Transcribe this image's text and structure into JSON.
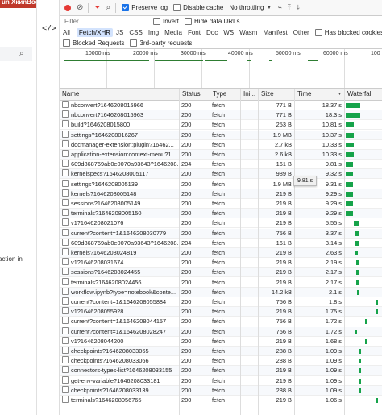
{
  "left_panel": {
    "brand": "un ХкиnBook",
    "partial_text": "action in"
  },
  "toolbar": {
    "preserve_log": "Preserve log",
    "disable_cache": "Disable cache",
    "throttling": "No throttling"
  },
  "filter": {
    "placeholder": "Filter",
    "invert": "Invert",
    "hide_data_urls": "Hide data URLs"
  },
  "types": [
    "All",
    "Fetch/XHR",
    "JS",
    "CSS",
    "Img",
    "Media",
    "Font",
    "Doc",
    "WS",
    "Wasm",
    "Manifest",
    "Other"
  ],
  "active_type": "Fetch/XHR",
  "has_blocked_cookies": "Has blocked cookies",
  "blocked_requests": "Blocked Requests",
  "third_party": "3rd-party requests",
  "overview": {
    "ticks": [
      "10000 ms",
      "20000 ms",
      "30000 ms",
      "40000 ms",
      "50000 ms",
      "60000 ms",
      "100"
    ]
  },
  "columns": {
    "name": "Name",
    "status": "Status",
    "type": "Type",
    "initiator": "Ini...",
    "size": "Size",
    "time": "Time",
    "waterfall": "Waterfall"
  },
  "tooltip": "9.81 s",
  "colors": {
    "accent": "#1a73e8",
    "record": "#e53935",
    "waterfall": "#16a34a"
  },
  "rows": [
    {
      "name": "nbconvert?1646208015966",
      "status": "200",
      "type": "fetch",
      "size": "771 B",
      "time": "18.37 s",
      "wf_start": 0.05,
      "wf_width": 0.38
    },
    {
      "name": "nbconvert?1646208015963",
      "status": "200",
      "type": "fetch",
      "size": "771 B",
      "time": "18.3 s",
      "wf_start": 0.05,
      "wf_width": 0.38
    },
    {
      "name": "build?1646208015800",
      "status": "200",
      "type": "fetch",
      "size": "253 B",
      "time": "10.81 s",
      "wf_start": 0.05,
      "wf_width": 0.22
    },
    {
      "name": "settings?1646208016267",
      "status": "200",
      "type": "fetch",
      "size": "1.9 MB",
      "time": "10.37 s",
      "wf_start": 0.05,
      "wf_width": 0.21
    },
    {
      "name": "docmanager-extension:plugin?16462...",
      "status": "200",
      "type": "fetch",
      "size": "2.7 kB",
      "time": "10.33 s",
      "wf_start": 0.05,
      "wf_width": 0.21
    },
    {
      "name": "application-extension:context-menu?1...",
      "status": "200",
      "type": "fetch",
      "size": "2.6 kB",
      "time": "10.33 s",
      "wf_start": 0.05,
      "wf_width": 0.21
    },
    {
      "name": "609d868769ab0e0070a93643?1646208...",
      "status": "204",
      "type": "fetch",
      "size": "161 B",
      "time": "9.81 s",
      "wf_start": 0.05,
      "wf_width": 0.2
    },
    {
      "name": "kernelspecs?1646208005117",
      "status": "200",
      "type": "fetch",
      "size": "989 B",
      "time": "9.32 s",
      "wf_start": 0.05,
      "wf_width": 0.19
    },
    {
      "name": "settings?1646208005139",
      "status": "200",
      "type": "fetch",
      "size": "1.9 MB",
      "time": "9.31 s",
      "wf_start": 0.05,
      "wf_width": 0.19
    },
    {
      "name": "kernels?1646208005148",
      "status": "200",
      "type": "fetch",
      "size": "219 B",
      "time": "9.29 s",
      "wf_start": 0.05,
      "wf_width": 0.19
    },
    {
      "name": "sessions?1646208005149",
      "status": "200",
      "type": "fetch",
      "size": "219 B",
      "time": "9.29 s",
      "wf_start": 0.05,
      "wf_width": 0.19
    },
    {
      "name": "terminals?1646208005150",
      "status": "200",
      "type": "fetch",
      "size": "219 B",
      "time": "9.29 s",
      "wf_start": 0.05,
      "wf_width": 0.19
    },
    {
      "name": "v1?1646208021076",
      "status": "200",
      "type": "fetch",
      "size": "219 B",
      "time": "5.55 s",
      "wf_start": 0.25,
      "wf_width": 0.12
    },
    {
      "name": "current?content=1&1646208030779",
      "status": "200",
      "type": "fetch",
      "size": "756 B",
      "time": "3.37 s",
      "wf_start": 0.3,
      "wf_width": 0.08
    },
    {
      "name": "609d868769ab0e0070a93643?1646208...",
      "status": "204",
      "type": "fetch",
      "size": "161 B",
      "time": "3.14 s",
      "wf_start": 0.3,
      "wf_width": 0.08
    },
    {
      "name": "kernels?1646208024819",
      "status": "200",
      "type": "fetch",
      "size": "219 B",
      "time": "2.63 s",
      "wf_start": 0.3,
      "wf_width": 0.07
    },
    {
      "name": "v1?1646208031674",
      "status": "200",
      "type": "fetch",
      "size": "219 B",
      "time": "2.19 s",
      "wf_start": 0.32,
      "wf_width": 0.06
    },
    {
      "name": "sessions?1646208024455",
      "status": "200",
      "type": "fetch",
      "size": "219 B",
      "time": "2.17 s",
      "wf_start": 0.32,
      "wf_width": 0.06
    },
    {
      "name": "terminals?1646208024456",
      "status": "200",
      "type": "fetch",
      "size": "219 B",
      "time": "2.17 s",
      "wf_start": 0.32,
      "wf_width": 0.06
    },
    {
      "name": "workflow.ipynb?type=notebook&conte...",
      "status": "200",
      "type": "fetch",
      "size": "14.2 kB",
      "time": "2.1 s",
      "wf_start": 0.33,
      "wf_width": 0.06
    },
    {
      "name": "current?content=1&1646208055884",
      "status": "200",
      "type": "fetch",
      "size": "756 B",
      "time": "1.8 s",
      "wf_start": 0.85,
      "wf_width": 0.05
    },
    {
      "name": "v1?1646208055928",
      "status": "200",
      "type": "fetch",
      "size": "219 B",
      "time": "1.75 s",
      "wf_start": 0.85,
      "wf_width": 0.05
    },
    {
      "name": "current?content=1&1646208044157",
      "status": "200",
      "type": "fetch",
      "size": "756 B",
      "time": "1.72 s",
      "wf_start": 0.55,
      "wf_width": 0.05
    },
    {
      "name": "current?content=1&1646208028247",
      "status": "200",
      "type": "fetch",
      "size": "756 B",
      "time": "1.72 s",
      "wf_start": 0.3,
      "wf_width": 0.05
    },
    {
      "name": "v1?1646208044200",
      "status": "200",
      "type": "fetch",
      "size": "219 B",
      "time": "1.68 s",
      "wf_start": 0.55,
      "wf_width": 0.05
    },
    {
      "name": "checkpoints?1646208033065",
      "status": "200",
      "type": "fetch",
      "size": "288 B",
      "time": "1.09 s",
      "wf_start": 0.4,
      "wf_width": 0.04
    },
    {
      "name": "checkpoints?1646208033066",
      "status": "200",
      "type": "fetch",
      "size": "288 B",
      "time": "1.09 s",
      "wf_start": 0.4,
      "wf_width": 0.04
    },
    {
      "name": "connectors-types-list?1646208033155",
      "status": "200",
      "type": "fetch",
      "size": "219 B",
      "time": "1.09 s",
      "wf_start": 0.4,
      "wf_width": 0.04
    },
    {
      "name": "get-env-variable?1646208033181",
      "status": "200",
      "type": "fetch",
      "size": "219 B",
      "time": "1.09 s",
      "wf_start": 0.4,
      "wf_width": 0.04
    },
    {
      "name": "checkpoints?1646208033139",
      "status": "200",
      "type": "fetch",
      "size": "288 B",
      "time": "1.09 s",
      "wf_start": 0.4,
      "wf_width": 0.04
    },
    {
      "name": "terminals?1646208056765",
      "status": "200",
      "type": "fetch",
      "size": "219 B",
      "time": "1.06 s",
      "wf_start": 0.86,
      "wf_width": 0.04
    }
  ]
}
